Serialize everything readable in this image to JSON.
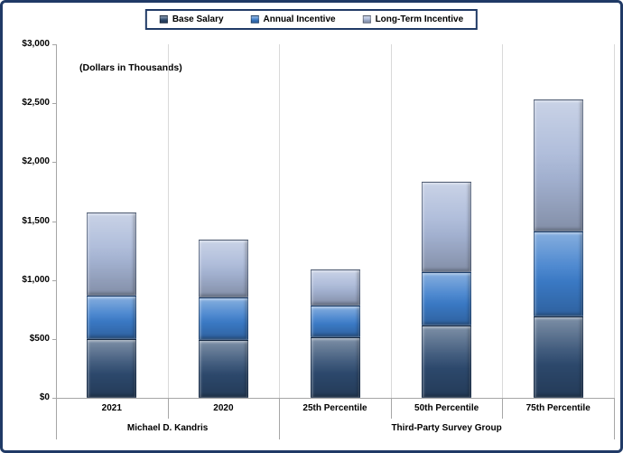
{
  "colors": {
    "frame_border": "#203A66",
    "axis_line": "#A6A6A6",
    "category_gridline": "#D9D9D9",
    "base_salary": "#2E4B70",
    "annual_incentive": "#3C7DCB",
    "long_term_incentive": "#A8B7D7"
  },
  "chart_data": {
    "type": "bar",
    "stacked": true,
    "annotation": "(Dollars in Thousands)",
    "legend_position": "top-center",
    "legend_labels": [
      "Base Salary",
      "Annual Incentive",
      "Long-Term Incentive"
    ],
    "categories": [
      "2021",
      "2020",
      "25th Percentile",
      "50th Percentile",
      "75th Percentile"
    ],
    "category_groups": [
      {
        "label": "Michael D. Kandris",
        "start": 0,
        "end": 1
      },
      {
        "label": "Third-Party Survey Group",
        "start": 2,
        "end": 4
      }
    ],
    "series": [
      {
        "name": "Base Salary",
        "color": "#2E4B70",
        "values": [
          500,
          490,
          515,
          615,
          690
        ]
      },
      {
        "name": "Annual Incentive",
        "color": "#3C7DCB",
        "values": [
          370,
          360,
          265,
          450,
          725
        ]
      },
      {
        "name": "Long-Term Incentive",
        "color": "#A8B7D7",
        "values": [
          700,
          490,
          310,
          770,
          1120
        ]
      }
    ],
    "totals": [
      1570,
      1340,
      1090,
      1835,
      2535
    ],
    "ylim": [
      0,
      3000
    ],
    "ytick_step": 500,
    "ytick_labels": [
      "$0",
      "$500",
      "$1,000",
      "$1,500",
      "$2,000",
      "$2,500",
      "$3,000"
    ],
    "horizontal_gridlines": false,
    "vertical_category_separators": true
  }
}
